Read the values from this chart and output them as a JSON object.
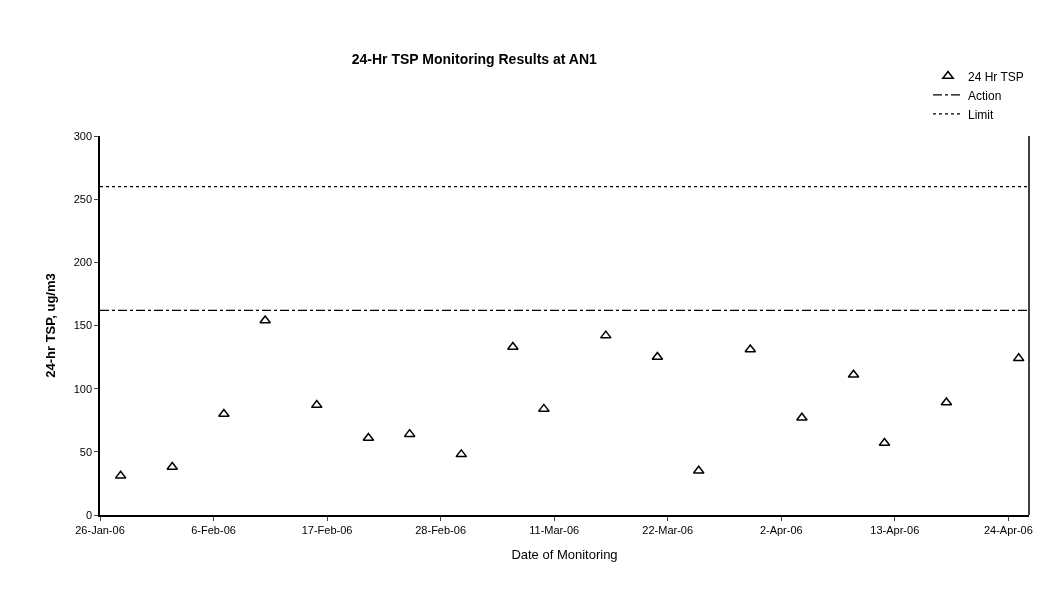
{
  "chart_data": {
    "type": "scatter",
    "title": "24-Hr TSP Monitoring Results at AN1",
    "xlabel": "Date of Monitoring",
    "ylabel": "24-hr TSP, ug/m3",
    "x": [
      "--01-28",
      "--02-02",
      "--02-07",
      "--02-11",
      "--02-16",
      "--02-21",
      "--02-25",
      "--03-02",
      "--03-07",
      "--03-10",
      "--03-16",
      "--03-21",
      "--03-25",
      "--03-30",
      "--04-04",
      "--04-09",
      "--04-12",
      "--04-18",
      "--04-25"
    ],
    "series": [
      {
        "name": "24 Hr TSP",
        "color": "#000000",
        "values": [
          31,
          38,
          80,
          154,
          87,
          61,
          64,
          48,
          133,
          84,
          142,
          125,
          35,
          131,
          77,
          111,
          57,
          89,
          124
        ]
      }
    ],
    "marker": "triangle",
    "ref_lines": [
      {
        "axis": "y",
        "value": 162,
        "label": "Action",
        "color": "#000000",
        "line_style": "dashdot"
      },
      {
        "axis": "y",
        "value": 260,
        "label": "Limit",
        "color": "#000000",
        "line_style": "dotted"
      }
    ],
    "xlim": [
      "--01-26",
      "--04-26"
    ],
    "xticks": [
      {
        "value": "--01-26",
        "label": "26-Jan-06"
      },
      {
        "value": "--02-06",
        "label": "6-Feb-06"
      },
      {
        "value": "--02-17",
        "label": "17-Feb-06"
      },
      {
        "value": "--02-28",
        "label": "28-Feb-06"
      },
      {
        "value": "--03-11",
        "label": "11-Mar-06"
      },
      {
        "value": "--03-22",
        "label": "22-Mar-06"
      },
      {
        "value": "--04-02",
        "label": "2-Apr-06"
      },
      {
        "value": "--04-13",
        "label": "13-Apr-06"
      },
      {
        "value": "--04-24",
        "label": "24-Apr-06"
      }
    ],
    "ylim": [
      0,
      300
    ],
    "yticks": [
      0,
      50,
      100,
      150,
      200,
      250,
      300
    ],
    "legend": "top right"
  }
}
